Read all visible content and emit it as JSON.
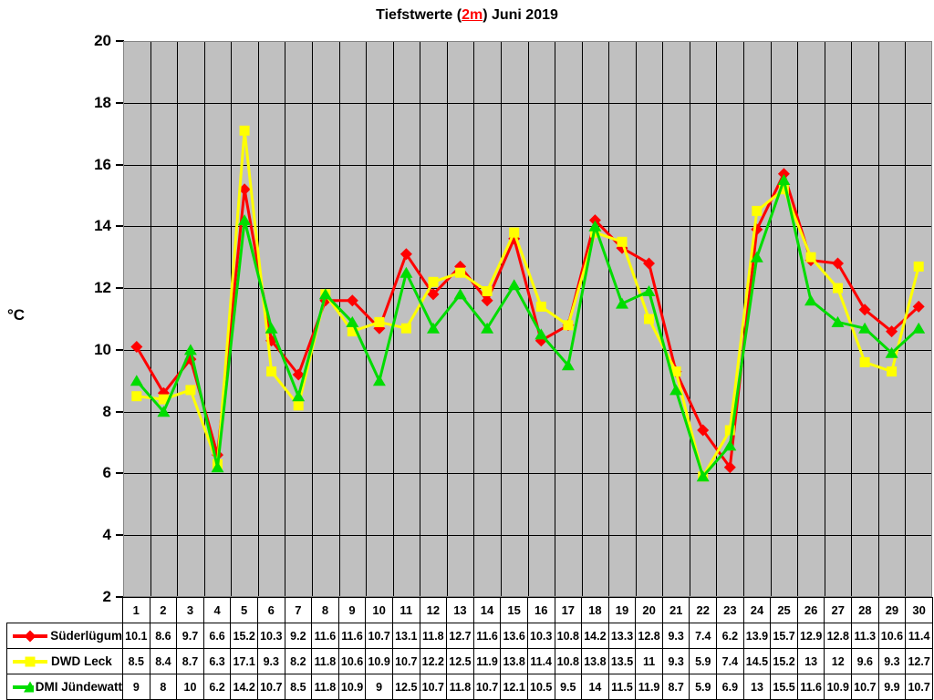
{
  "title": {
    "prefix": "Tiefstwerte (",
    "highlight": "2m",
    "suffix": ") Juni 2019",
    "highlight_color": "#ff0000"
  },
  "chart_data": {
    "type": "line",
    "title": "Tiefstwerte (2m) Juni 2019",
    "ylabel": "°C",
    "xlabel": "",
    "ylim": [
      2,
      20
    ],
    "y_ticks": [
      20,
      18,
      16,
      14,
      12,
      10,
      8,
      6,
      4,
      2
    ],
    "grid": true,
    "legend_position": "bottom-left",
    "plot_bg": "#c0c0c0",
    "grid_color": "#000000",
    "border_color": "#848484",
    "categories": [
      1,
      2,
      3,
      4,
      5,
      6,
      7,
      8,
      9,
      10,
      11,
      12,
      13,
      14,
      15,
      16,
      17,
      18,
      19,
      20,
      21,
      22,
      23,
      24,
      25,
      26,
      27,
      28,
      29,
      30
    ],
    "series": [
      {
        "name": "Süderlügum",
        "color": "#ff0000",
        "marker": "diamond",
        "values": [
          10.1,
          8.6,
          9.7,
          6.6,
          15.2,
          10.3,
          9.2,
          11.6,
          11.6,
          10.7,
          13.1,
          11.8,
          12.7,
          11.6,
          13.6,
          10.3,
          10.8,
          14.2,
          13.3,
          12.8,
          9.3,
          7.4,
          6.2,
          13.9,
          15.7,
          12.9,
          12.8,
          11.3,
          10.6,
          11.4
        ]
      },
      {
        "name": "DWD Leck",
        "color": "#ffff00",
        "marker": "square",
        "values": [
          8.5,
          8.4,
          8.7,
          6.3,
          17.1,
          9.3,
          8.2,
          11.8,
          10.6,
          10.9,
          10.7,
          12.2,
          12.5,
          11.9,
          13.8,
          11.4,
          10.8,
          13.8,
          13.5,
          11,
          9.3,
          5.9,
          7.4,
          14.5,
          15.2,
          13,
          12,
          9.6,
          9.3,
          12.7
        ]
      },
      {
        "name": "DMI Jündewatt",
        "color": "#00dc00",
        "marker": "triangle",
        "values": [
          9,
          8,
          10,
          6.2,
          14.2,
          10.7,
          8.5,
          11.8,
          10.9,
          9,
          12.5,
          10.7,
          11.8,
          10.7,
          12.1,
          10.5,
          9.5,
          14,
          11.5,
          11.9,
          8.7,
          5.9,
          6.9,
          13,
          15.5,
          11.6,
          10.9,
          10.7,
          9.9,
          10.7
        ]
      }
    ]
  }
}
